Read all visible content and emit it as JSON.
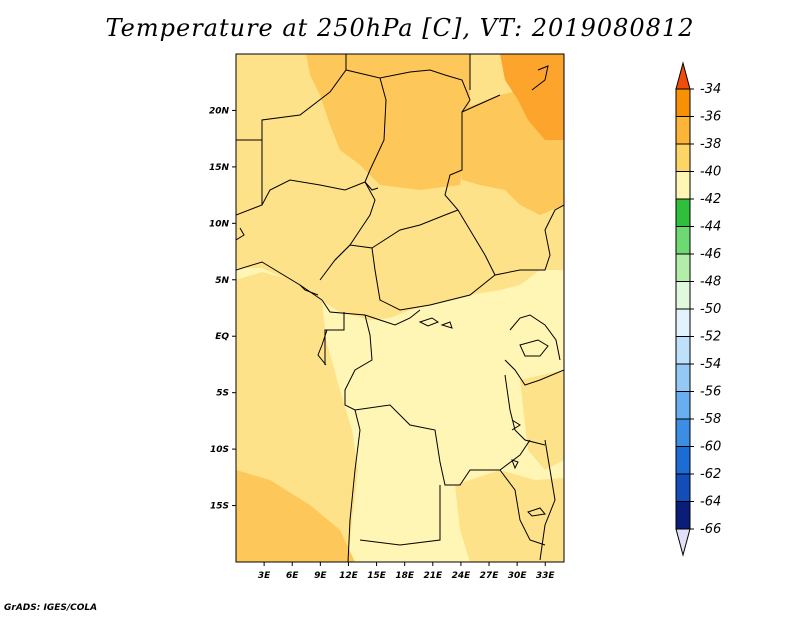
{
  "title": "Temperature at 250hPa [C], VT: 2019080812",
  "credit": "GrADS: IGES/COLA",
  "map": {
    "lon_labels": [
      "3E",
      "6E",
      "9E",
      "12E",
      "15E",
      "18E",
      "21E",
      "24E",
      "27E",
      "30E",
      "33E"
    ],
    "lat_labels": [
      "20N",
      "15N",
      "10N",
      "5N",
      "EQ",
      "5S",
      "10S",
      "15S"
    ],
    "extent": {
      "lon_min": 0,
      "lon_max": 35,
      "lat_min": -20,
      "lat_max": 25
    },
    "field_colors": {
      "-44_-42": "#fff5b4",
      "-42_-40": "#fee28a",
      "-40_-38": "#fdc75a",
      "-38_-36": "#fca42c",
      "-36_-34": "#f87d0c"
    }
  },
  "colorbar": {
    "levels": [
      "-34",
      "-36",
      "-38",
      "-40",
      "-42",
      "-44",
      "-46",
      "-48",
      "-50",
      "-52",
      "-54",
      "-56",
      "-58",
      "-60",
      "-62",
      "-64",
      "-66"
    ],
    "colors": [
      "#f04c0a",
      "#f79005",
      "#fcb538",
      "#fdd566",
      "#fff5b4",
      "#2fbf3c",
      "#6ed873",
      "#b4edaa",
      "#e0f8dd",
      "#e2f3fd",
      "#bde0fb",
      "#94c9f6",
      "#68aef0",
      "#3d8de3",
      "#1d6bd4",
      "#124db8",
      "#0a1d78",
      "#e2e0f8"
    ]
  }
}
